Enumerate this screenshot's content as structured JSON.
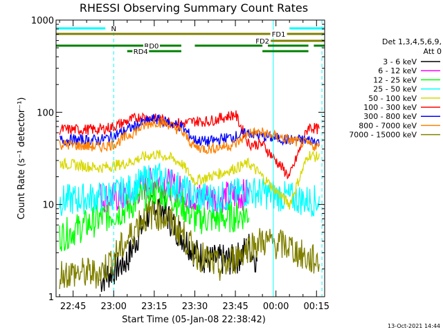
{
  "chart_data": {
    "type": "line",
    "title": "RHESSI Observing Summary Count Rates",
    "xlabel": "Start Time (05-Jan-08 22:38:42)",
    "ylabel": "Count Rate (s⁻¹ detector⁻¹)",
    "y_scale": "log",
    "ylim": [
      1,
      1000
    ],
    "xlim": [
      "22:38:42",
      "00:18:00"
    ],
    "x_ticks": [
      "22:45",
      "23:00",
      "23:15",
      "23:30",
      "23:45",
      "00:00",
      "00:15"
    ],
    "y_ticks": [
      "1",
      "10",
      "100",
      "1000"
    ],
    "grid": false,
    "legend_position": "right",
    "legend_header": [
      "Det 1,3,4,5,6,9,",
      "Att 0"
    ],
    "footer_date": "13-Oct-2021 14:44",
    "x_time_axis_minutes_from_22_45": [
      0,
      15,
      30,
      45,
      60,
      75,
      90
    ],
    "series": [
      {
        "name": "3 - 6 keV",
        "color": "#000000",
        "x": [
          "22:55",
          "23:05",
          "23:08",
          "23:12",
          "23:15",
          "23:18",
          "23:22",
          "23:27",
          "23:30",
          "23:35",
          "23:45",
          "23:50",
          "23:53"
        ],
        "y": [
          1.5,
          2.5,
          4,
          7,
          10,
          9,
          6,
          4,
          3,
          2.5,
          2.5,
          3.5,
          2.5
        ]
      },
      {
        "name": "6 - 12 keV",
        "color": "#ff00ff",
        "x": [
          "22:55",
          "23:05",
          "23:10",
          "23:15",
          "23:20",
          "23:25",
          "23:30",
          "23:40",
          "23:50"
        ],
        "y": [
          12,
          12,
          15,
          18,
          17,
          14,
          12,
          12,
          13
        ]
      },
      {
        "name": "12 - 25 keV",
        "color": "#00ff00",
        "x": [
          "22:40",
          "22:55",
          "23:05",
          "23:10",
          "23:15",
          "23:20",
          "23:25",
          "23:30",
          "23:40",
          "23:50"
        ],
        "y": [
          4.5,
          7,
          9,
          12,
          14,
          13,
          10,
          7,
          7,
          8
        ]
      },
      {
        "name": "25 - 50 keV",
        "color": "#00ffff",
        "x": [
          "22:40",
          "22:55",
          "23:05",
          "23:10",
          "23:15",
          "23:20",
          "23:25",
          "23:30",
          "23:40",
          "23:50",
          "00:12",
          "00:16"
        ],
        "y": [
          11,
          12,
          14,
          17,
          20,
          18,
          15,
          12,
          12,
          14,
          11,
          11
        ]
      },
      {
        "name": "50 - 100 keV",
        "color": "#d8d800",
        "x": [
          "22:40",
          "22:55",
          "23:05",
          "23:10",
          "23:15",
          "23:20",
          "23:25",
          "23:30",
          "23:40",
          "23:50",
          "23:55",
          "00:05",
          "00:12",
          "00:16"
        ],
        "y": [
          28,
          25,
          28,
          32,
          35,
          33,
          28,
          18,
          22,
          28,
          20,
          10,
          35,
          32
        ]
      },
      {
        "name": "100 - 300 keV",
        "color": "#ff0000",
        "x": [
          "22:40",
          "22:55",
          "23:00",
          "23:05",
          "23:10",
          "23:15",
          "23:20",
          "23:25",
          "23:30",
          "23:35",
          "23:45",
          "23:50",
          "23:55",
          "00:05",
          "00:12",
          "00:16"
        ],
        "y": [
          65,
          65,
          70,
          80,
          90,
          85,
          80,
          75,
          80,
          80,
          95,
          45,
          45,
          20,
          70,
          65
        ]
      },
      {
        "name": "300 - 800 keV",
        "color": "#0000ff",
        "x": [
          "22:40",
          "22:55",
          "23:00",
          "23:05",
          "23:10",
          "23:15",
          "23:20",
          "23:25",
          "23:30",
          "23:35",
          "23:45",
          "23:50",
          "23:55",
          "00:05",
          "00:12",
          "00:16"
        ],
        "y": [
          50,
          50,
          55,
          65,
          75,
          85,
          78,
          70,
          50,
          48,
          55,
          60,
          55,
          50,
          50,
          48
        ]
      },
      {
        "name": "800 - 7000 keV",
        "color": "#ff8000",
        "x": [
          "22:40",
          "22:55",
          "23:00",
          "23:05",
          "23:10",
          "23:15",
          "23:20",
          "23:25",
          "23:30",
          "23:35",
          "23:45",
          "23:50",
          "23:55",
          "00:05",
          "00:12",
          "00:16"
        ],
        "y": [
          45,
          42,
          45,
          55,
          68,
          80,
          75,
          62,
          42,
          40,
          45,
          60,
          60,
          50,
          45,
          42
        ]
      },
      {
        "name": "7000 - 15000 keV",
        "color": "#808000",
        "x": [
          "22:40",
          "22:55",
          "23:05",
          "23:10",
          "23:15",
          "23:20",
          "23:25",
          "23:30",
          "23:40",
          "23:50",
          "23:55",
          "00:05",
          "00:12",
          "00:16"
        ],
        "y": [
          1.8,
          1.8,
          4,
          7,
          8,
          7,
          5,
          3,
          2,
          3.5,
          4,
          3.5,
          2.5,
          2.5
        ]
      }
    ],
    "state_bars": [
      {
        "name": "N",
        "color": "#00ffff",
        "segments": [
          [
            "22:38:42",
            "23:00"
          ],
          [
            "00:05",
            "00:18"
          ]
        ]
      },
      {
        "name": "FD1",
        "color": "#808000",
        "segments": [
          [
            "22:38:42",
            "00:18"
          ]
        ]
      },
      {
        "name": "FD2",
        "color": "#808000",
        "segments": [
          [
            "23:55",
            "00:18"
          ]
        ]
      },
      {
        "name": "RD0",
        "color": "#008000",
        "segments": [
          [
            "22:38:42",
            "23:25"
          ],
          [
            "23:30",
            "23:55"
          ],
          [
            "23:57",
            "00:12"
          ],
          [
            "00:14",
            "00:18"
          ]
        ]
      },
      {
        "name": "RD4",
        "color": "#008000",
        "segments": [
          [
            "23:05",
            "23:25"
          ],
          [
            "23:55",
            "00:12"
          ]
        ]
      }
    ],
    "vertical_markers": [
      {
        "x": "23:00",
        "color": "#00ffff",
        "style": "dashed"
      },
      {
        "x": "23:59",
        "color": "#00ffff",
        "style": "solid"
      },
      {
        "x": "00:17",
        "color": "#00ffff",
        "style": "dashed"
      }
    ]
  }
}
